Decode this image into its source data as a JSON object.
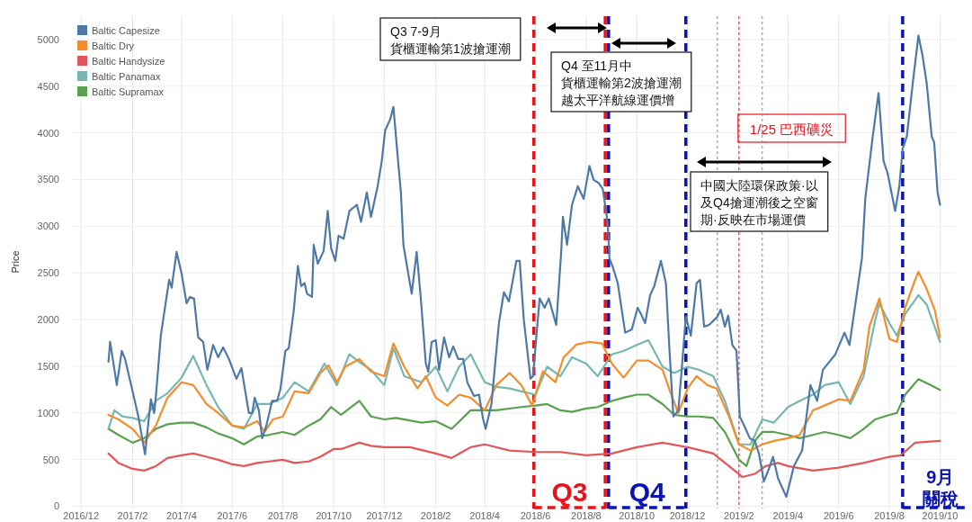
{
  "chart_data": {
    "type": "line",
    "ylabel": "Price",
    "xlim": [
      "2016-11-20",
      "2019-10-20"
    ],
    "ylim": [
      -25,
      5250
    ],
    "xticks": [
      {
        "value": "2016-12",
        "label": "2016/12"
      },
      {
        "value": "2017-02",
        "label": "2017/2"
      },
      {
        "value": "2017-04",
        "label": "2017/4"
      },
      {
        "value": "2017-06",
        "label": "2017/6"
      },
      {
        "value": "2017-08",
        "label": "2017/8"
      },
      {
        "value": "2017-10",
        "label": "2017/10"
      },
      {
        "value": "2017-12",
        "label": "2017/12"
      },
      {
        "value": "2018-02",
        "label": "2018/2"
      },
      {
        "value": "2018-04",
        "label": "2018/4"
      },
      {
        "value": "2018-06",
        "label": "2018/6"
      },
      {
        "value": "2018-08",
        "label": "2018/8"
      },
      {
        "value": "2018-10",
        "label": "2018/10"
      },
      {
        "value": "2018-12",
        "label": "2018/12"
      },
      {
        "value": "2019-02",
        "label": "2019/2"
      },
      {
        "value": "2019-04",
        "label": "2019/4"
      },
      {
        "value": "2019-06",
        "label": "2019/6"
      },
      {
        "value": "2019-08",
        "label": "2019/8"
      },
      {
        "value": "2019-10",
        "label": "2019/10"
      }
    ],
    "yticks": [
      0,
      500,
      1000,
      1500,
      2000,
      2500,
      3000,
      3500,
      4000,
      4500,
      5000
    ],
    "grid": true,
    "legend": "top left",
    "series": [
      {
        "name": "Baltic Capesize",
        "color": "#4e79a7",
        "x": [
          "2017-01-03",
          "2017-01-05",
          "2017-01-13",
          "2017-01-19",
          "2017-01-23",
          "2017-02-01",
          "2017-02-08",
          "2017-02-16",
          "2017-02-23",
          "2017-02-27",
          "2017-03-01",
          "2017-03-07",
          "2017-03-17",
          "2017-03-20",
          "2017-03-26",
          "2017-04-01",
          "2017-04-07",
          "2017-04-11",
          "2017-04-16",
          "2017-04-21",
          "2017-04-27",
          "2017-05-02",
          "2017-05-09",
          "2017-05-15",
          "2017-05-21",
          "2017-05-28",
          "2017-06-06",
          "2017-06-12",
          "2017-06-21",
          "2017-06-25",
          "2017-06-28",
          "2017-07-03",
          "2017-07-07",
          "2017-07-12",
          "2017-07-19",
          "2017-07-25",
          "2017-07-29",
          "2017-08-04",
          "2017-08-08",
          "2017-08-14",
          "2017-08-19",
          "2017-08-23",
          "2017-08-27",
          "2017-08-30",
          "2017-09-05",
          "2017-09-07",
          "2017-09-12",
          "2017-09-19",
          "2017-09-24",
          "2017-09-28",
          "2017-10-03",
          "2017-10-07",
          "2017-10-13",
          "2017-10-20",
          "2017-10-29",
          "2017-11-03",
          "2017-11-10",
          "2017-11-15",
          "2017-11-23",
          "2017-11-28",
          "2017-12-02",
          "2017-12-08",
          "2017-12-12",
          "2017-12-17",
          "2017-12-21",
          "2017-12-24",
          "2018-01-03",
          "2018-01-09",
          "2018-01-14",
          "2018-01-20",
          "2018-01-23",
          "2018-01-27",
          "2018-02-01",
          "2018-02-05",
          "2018-02-11",
          "2018-02-17",
          "2018-02-22",
          "2018-02-28",
          "2018-03-06",
          "2018-03-11",
          "2018-03-19",
          "2018-03-25",
          "2018-03-30",
          "2018-04-02",
          "2018-04-09",
          "2018-04-18",
          "2018-04-24",
          "2018-04-30",
          "2018-05-09",
          "2018-05-13",
          "2018-05-18",
          "2018-05-26",
          "2018-05-29",
          "2018-06-06",
          "2018-06-12",
          "2018-06-17",
          "2018-06-26",
          "2018-07-02",
          "2018-07-04",
          "2018-07-09",
          "2018-07-15",
          "2018-07-22",
          "2018-07-29",
          "2018-08-05",
          "2018-08-10",
          "2018-08-16",
          "2018-08-21",
          "2018-08-27",
          "2018-08-29",
          "2018-09-02",
          "2018-09-08",
          "2018-09-17",
          "2018-09-25",
          "2018-10-02",
          "2018-10-06",
          "2018-10-11",
          "2018-10-17",
          "2018-10-22",
          "2018-10-30",
          "2018-11-05",
          "2018-11-09",
          "2018-11-14",
          "2018-11-20",
          "2018-11-24",
          "2018-11-29",
          "2018-12-05",
          "2018-12-12",
          "2018-12-16",
          "2018-12-21",
          "2018-12-27",
          "2019-01-06",
          "2019-01-10",
          "2019-01-15",
          "2019-01-19",
          "2019-01-24",
          "2019-01-29",
          "2019-02-02",
          "2019-02-09",
          "2019-02-14",
          "2019-02-20",
          "2019-02-25",
          "2019-03-03",
          "2019-03-09",
          "2019-03-14",
          "2019-03-20",
          "2019-03-30",
          "2019-04-08",
          "2019-04-18",
          "2019-04-28",
          "2019-05-06",
          "2019-05-13",
          "2019-05-28",
          "2019-06-08",
          "2019-06-14",
          "2019-06-29",
          "2019-07-03",
          "2019-07-12",
          "2019-07-19",
          "2019-07-25",
          "2019-07-30",
          "2019-08-08",
          "2019-08-13",
          "2019-08-17",
          "2019-08-22",
          "2019-08-30",
          "2019-09-05",
          "2019-09-10",
          "2019-09-15",
          "2019-09-21",
          "2019-09-24",
          "2019-09-28",
          "2019-10-01"
        ],
        "values": [
          1548,
          1760,
          1297,
          1663,
          1577,
          1230,
          959,
          555,
          1145,
          998,
          1172,
          1827,
          2425,
          2340,
          2724,
          2493,
          2175,
          2240,
          2223,
          1808,
          1760,
          1461,
          1727,
          1596,
          1702,
          1577,
          1365,
          1480,
          998,
          998,
          1162,
          1027,
          728,
          863,
          1128,
          1128,
          1258,
          1663,
          1692,
          2092,
          2575,
          2358,
          2391,
          2276,
          2242,
          2801,
          2599,
          2734,
          3163,
          2763,
          2628,
          2898,
          2864,
          3163,
          3230,
          3046,
          3361,
          3100,
          3428,
          3698,
          4026,
          4142,
          4277,
          3762,
          3361,
          2801,
          2276,
          2724,
          2223,
          1528,
          1442,
          1760,
          1779,
          1461,
          1808,
          1596,
          1712,
          1577,
          1577,
          1326,
          1181,
          1195,
          930,
          828,
          1094,
          1962,
          2292,
          2194,
          2628,
          2628,
          1991,
          1365,
          1393,
          2226,
          2126,
          2226,
          1943,
          2724,
          3100,
          2801,
          3230,
          3428,
          3293,
          3645,
          3496,
          3463,
          3399,
          3033,
          2657,
          2565,
          2391,
          1859,
          1895,
          2126,
          2059,
          1962,
          2261,
          2358,
          2628,
          2391,
          1727,
          961,
          1027,
          1461,
          2030,
          1827,
          2391,
          2425,
          1924,
          1943,
          2030,
          2107,
          1924,
          2042,
          1727,
          1663,
          961,
          828,
          728,
          699,
          564,
          265,
          400,
          529,
          297,
          101,
          429,
          596,
          1297,
          1128,
          1461,
          1627,
          1859,
          1727,
          2657,
          3296,
          3961,
          4427,
          3698,
          3563,
          3163,
          3428,
          3828,
          3961,
          4595,
          5042,
          4826,
          4527,
          3961,
          3895,
          3363,
          3230
        ]
      },
      {
        "name": "Baltic Dry",
        "color": "#f28e2b",
        "x": [
          "2017-01-03",
          "2017-01-15",
          "2017-02-01",
          "2017-02-15",
          "2017-03-01",
          "2017-03-15",
          "2017-04-01",
          "2017-04-15",
          "2017-05-01",
          "2017-05-15",
          "2017-06-01",
          "2017-06-15",
          "2017-07-01",
          "2017-07-10",
          "2017-07-20",
          "2017-08-01",
          "2017-08-15",
          "2017-09-01",
          "2017-09-15",
          "2017-09-25",
          "2017-10-05",
          "2017-10-15",
          "2017-11-01",
          "2017-11-15",
          "2017-12-01",
          "2017-12-12",
          "2017-12-25",
          "2018-01-10",
          "2018-01-20",
          "2018-02-01",
          "2018-02-15",
          "2018-03-01",
          "2018-03-15",
          "2018-04-01",
          "2018-04-15",
          "2018-05-01",
          "2018-05-15",
          "2018-05-28",
          "2018-06-10",
          "2018-06-25",
          "2018-07-05",
          "2018-07-20",
          "2018-08-05",
          "2018-08-20",
          "2018-09-01",
          "2018-09-15",
          "2018-10-01",
          "2018-10-15",
          "2018-11-01",
          "2018-11-10",
          "2018-11-20",
          "2018-12-01",
          "2018-12-12",
          "2018-12-25",
          "2019-01-05",
          "2019-01-20",
          "2019-02-01",
          "2019-02-15",
          "2019-03-01",
          "2019-03-15",
          "2019-04-01",
          "2019-04-15",
          "2019-05-01",
          "2019-05-15",
          "2019-06-01",
          "2019-06-15",
          "2019-07-01",
          "2019-07-08",
          "2019-07-20",
          "2019-08-01",
          "2019-08-10",
          "2019-08-20",
          "2019-09-01",
          "2019-09-05",
          "2019-09-15",
          "2019-09-25",
          "2019-10-01"
        ],
        "values": [
          978,
          930,
          828,
          680,
          863,
          1162,
          1328,
          1297,
          1094,
          998,
          863,
          844,
          911,
          795,
          930,
          961,
          1230,
          1210,
          1427,
          1509,
          1328,
          1494,
          1577,
          1444,
          1393,
          1744,
          1494,
          1261,
          1393,
          1162,
          1078,
          1195,
          1162,
          1027,
          1297,
          1427,
          1297,
          1078,
          1444,
          1328,
          1596,
          1731,
          1760,
          1744,
          1528,
          1377,
          1560,
          1560,
          1461,
          1230,
          998,
          1261,
          1393,
          1297,
          1261,
          961,
          662,
          596,
          662,
          699,
          728,
          763,
          1027,
          1078,
          1145,
          1128,
          1461,
          1926,
          2226,
          1793,
          1760,
          2126,
          2425,
          2512,
          2325,
          2092,
          1810
        ]
      },
      {
        "name": "Baltic Handysize",
        "color": "#e15759",
        "x": [
          "2017-01-03",
          "2017-01-15",
          "2017-02-01",
          "2017-02-15",
          "2017-03-01",
          "2017-03-15",
          "2017-04-01",
          "2017-04-15",
          "2017-05-01",
          "2017-05-15",
          "2017-06-01",
          "2017-06-15",
          "2017-07-01",
          "2017-07-15",
          "2017-08-01",
          "2017-08-15",
          "2017-09-01",
          "2017-09-15",
          "2017-10-01",
          "2017-10-10",
          "2017-11-01",
          "2017-11-15",
          "2017-12-01",
          "2018-01-01",
          "2018-02-01",
          "2018-02-20",
          "2018-03-15",
          "2018-04-01",
          "2018-05-01",
          "2018-06-01",
          "2018-07-01",
          "2018-08-01",
          "2018-09-01",
          "2018-10-01",
          "2018-11-01",
          "2018-12-01",
          "2019-01-01",
          "2019-01-20",
          "2019-02-05",
          "2019-02-20",
          "2019-03-05",
          "2019-03-20",
          "2019-04-01",
          "2019-05-01",
          "2019-06-01",
          "2019-07-01",
          "2019-08-01",
          "2019-08-15",
          "2019-09-01",
          "2019-10-01"
        ],
        "values": [
          564,
          463,
          400,
          381,
          429,
          516,
          545,
          564,
          529,
          497,
          448,
          429,
          463,
          479,
          497,
          463,
          479,
          529,
          612,
          612,
          680,
          646,
          632,
          632,
          564,
          516,
          632,
          662,
          596,
          580,
          580,
          546,
          564,
          632,
          680,
          632,
          564,
          429,
          313,
          346,
          429,
          463,
          429,
          381,
          413,
          463,
          529,
          546,
          680,
          699
        ]
      },
      {
        "name": "Baltic Panamax",
        "color": "#76b7b2",
        "x": [
          "2017-01-03",
          "2017-01-10",
          "2017-01-20",
          "2017-02-01",
          "2017-02-15",
          "2017-03-01",
          "2017-03-15",
          "2017-04-01",
          "2017-04-15",
          "2017-05-01",
          "2017-05-15",
          "2017-06-01",
          "2017-06-15",
          "2017-07-01",
          "2017-07-15",
          "2017-08-01",
          "2017-08-15",
          "2017-09-01",
          "2017-09-20",
          "2017-10-05",
          "2017-10-20",
          "2017-11-01",
          "2017-11-15",
          "2017-12-01",
          "2017-12-12",
          "2017-12-25",
          "2018-01-15",
          "2018-02-01",
          "2018-02-15",
          "2018-03-01",
          "2018-03-15",
          "2018-04-01",
          "2018-04-15",
          "2018-05-01",
          "2018-05-15",
          "2018-06-01",
          "2018-06-15",
          "2018-07-01",
          "2018-07-15",
          "2018-08-01",
          "2018-08-15",
          "2018-09-01",
          "2018-09-15",
          "2018-10-01",
          "2018-10-15",
          "2018-11-01",
          "2018-11-15",
          "2018-12-01",
          "2018-12-15",
          "2019-01-01",
          "2019-01-15",
          "2019-02-01",
          "2019-02-15",
          "2019-03-01",
          "2019-03-15",
          "2019-04-01",
          "2019-04-15",
          "2019-05-01",
          "2019-05-15",
          "2019-06-01",
          "2019-06-15",
          "2019-07-01",
          "2019-07-15",
          "2019-07-20",
          "2019-08-01",
          "2019-08-10",
          "2019-08-20",
          "2019-09-05",
          "2019-09-15",
          "2019-10-01"
        ],
        "values": [
          828,
          1027,
          961,
          945,
          911,
          1128,
          1210,
          1377,
          1610,
          1297,
          1062,
          863,
          828,
          1094,
          1094,
          1162,
          1328,
          1230,
          1528,
          1297,
          1627,
          1544,
          1461,
          1297,
          1692,
          1393,
          1328,
          1494,
          1230,
          1494,
          1627,
          1328,
          1278,
          1261,
          1230,
          1195,
          1494,
          1393,
          1596,
          1528,
          1393,
          1627,
          1663,
          1727,
          1779,
          1494,
          1427,
          1494,
          1461,
          1393,
          1128,
          662,
          662,
          930,
          895,
          1062,
          1128,
          1195,
          1297,
          1328,
          1094,
          1393,
          1992,
          2175,
          1962,
          1827,
          2059,
          2261,
          2159,
          1760
        ]
      },
      {
        "name": "Baltic Supramax",
        "color": "#59a14f",
        "x": [
          "2017-01-03",
          "2017-01-15",
          "2017-02-01",
          "2017-02-15",
          "2017-03-01",
          "2017-03-15",
          "2017-04-01",
          "2017-04-15",
          "2017-05-01",
          "2017-05-15",
          "2017-06-01",
          "2017-06-15",
          "2017-07-01",
          "2017-07-15",
          "2017-08-01",
          "2017-08-15",
          "2017-09-01",
          "2017-09-15",
          "2017-09-28",
          "2017-10-10",
          "2017-11-01",
          "2017-11-15",
          "2017-12-01",
          "2017-12-15",
          "2018-01-15",
          "2018-02-01",
          "2018-02-20",
          "2018-03-15",
          "2018-04-01",
          "2018-04-15",
          "2018-05-15",
          "2018-06-01",
          "2018-06-15",
          "2018-07-01",
          "2018-07-15",
          "2018-08-01",
          "2018-08-15",
          "2018-09-01",
          "2018-09-15",
          "2018-10-01",
          "2018-10-15",
          "2018-11-01",
          "2018-11-15",
          "2018-12-01",
          "2018-12-15",
          "2019-01-01",
          "2019-01-15",
          "2019-02-01",
          "2019-02-10",
          "2019-02-20",
          "2019-03-01",
          "2019-03-15",
          "2019-04-01",
          "2019-04-15",
          "2019-05-01",
          "2019-05-15",
          "2019-06-01",
          "2019-06-15",
          "2019-07-01",
          "2019-07-15",
          "2019-08-01",
          "2019-08-10",
          "2019-08-20",
          "2019-09-05",
          "2019-09-20",
          "2019-10-01"
        ],
        "values": [
          828,
          763,
          680,
          728,
          828,
          878,
          895,
          895,
          844,
          779,
          728,
          662,
          747,
          763,
          795,
          763,
          863,
          930,
          1062,
          978,
          1128,
          961,
          930,
          945,
          895,
          911,
          828,
          1027,
          1027,
          1027,
          1062,
          1078,
          1094,
          1027,
          1011,
          1046,
          1062,
          1128,
          1162,
          1195,
          1195,
          1094,
          978,
          961,
          961,
          945,
          795,
          497,
          429,
          699,
          795,
          795,
          763,
          728,
          763,
          795,
          763,
          728,
          828,
          930,
          978,
          998,
          1195,
          1361,
          1297,
          1245
        ]
      }
    ],
    "ref_lines": [
      {
        "axis": "x",
        "value": "2018-05-30",
        "label": "Q3",
        "color": "#e8141c",
        "line_style": "dashed"
      },
      {
        "axis": "x",
        "value": "2018-08-24",
        "label": null,
        "color": "#e8141c",
        "line_style": "dashed"
      },
      {
        "axis": "x",
        "value": "2018-08-28",
        "label": "Q4",
        "color": "#0a14b4",
        "line_style": "dashed"
      },
      {
        "axis": "x",
        "value": "2018-11-29",
        "label": null,
        "color": "#0a14b4",
        "line_style": "dashed"
      },
      {
        "axis": "x",
        "value": "2019-01-06",
        "label": null,
        "color": "#888888",
        "line_style": "dotted"
      },
      {
        "axis": "x",
        "value": "2019-02-01",
        "label": "1/25 巴西礦災",
        "color": "#e8141c",
        "line_style": "dotted"
      },
      {
        "axis": "x",
        "value": "2019-03-01",
        "label": null,
        "color": "#888888",
        "line_style": "dotted"
      },
      {
        "axis": "x",
        "value": "2019-08-17",
        "label": "9月關稅",
        "color": "#0a14b4",
        "line_style": "dashed"
      }
    ],
    "annotations": [
      "Q3 7-9月貨櫃運輸第1波搶運潮",
      "Q4  至11月中貨櫃運輸第2波搶運潮越太平洋航線運價增",
      "中國大陸環保政策·以及Q4搶運潮後之空窗期·反映在市場運價"
    ]
  }
}
